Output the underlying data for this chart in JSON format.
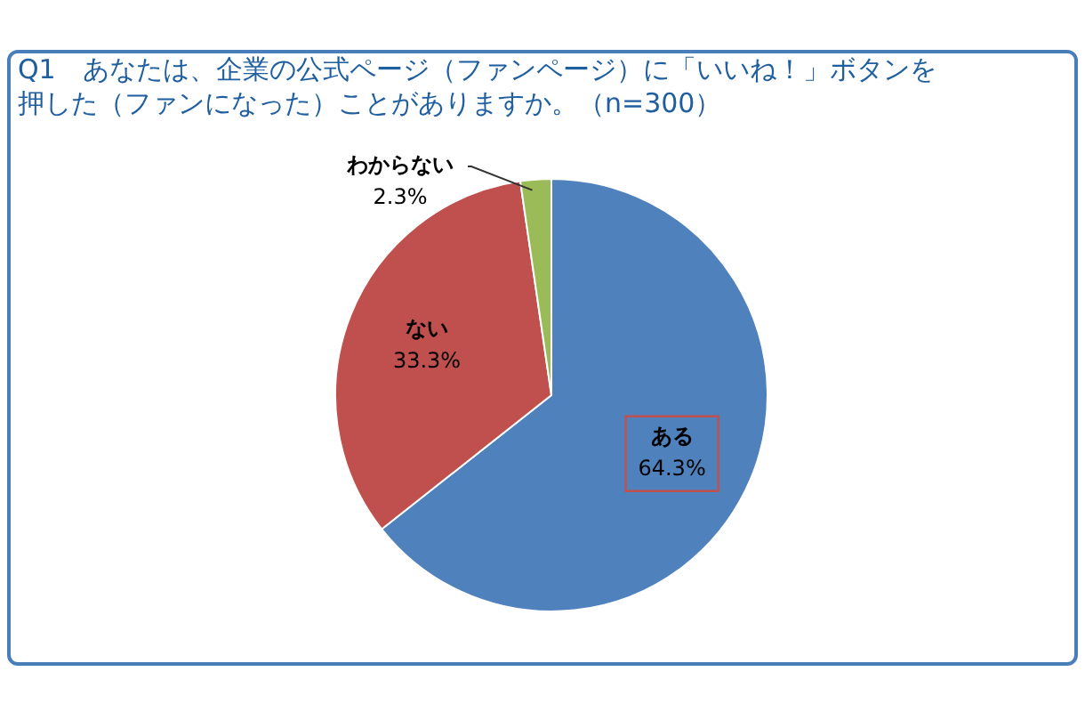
{
  "chart_data": {
    "type": "pie",
    "title": "Q1　あなたは、企業の公式ページ（ファンページ）に「いいね！」ボタンを押した（ファンになった）ことがありますか。（n=300）",
    "categories": [
      "ある",
      "ない",
      "わからない"
    ],
    "values": [
      64.3,
      33.3,
      2.3
    ],
    "value_labels": [
      "64.3%",
      "33.3%",
      "2.3%"
    ],
    "colors": [
      "#4f81bd",
      "#c0504d",
      "#9bbb59"
    ],
    "legend": false
  }
}
